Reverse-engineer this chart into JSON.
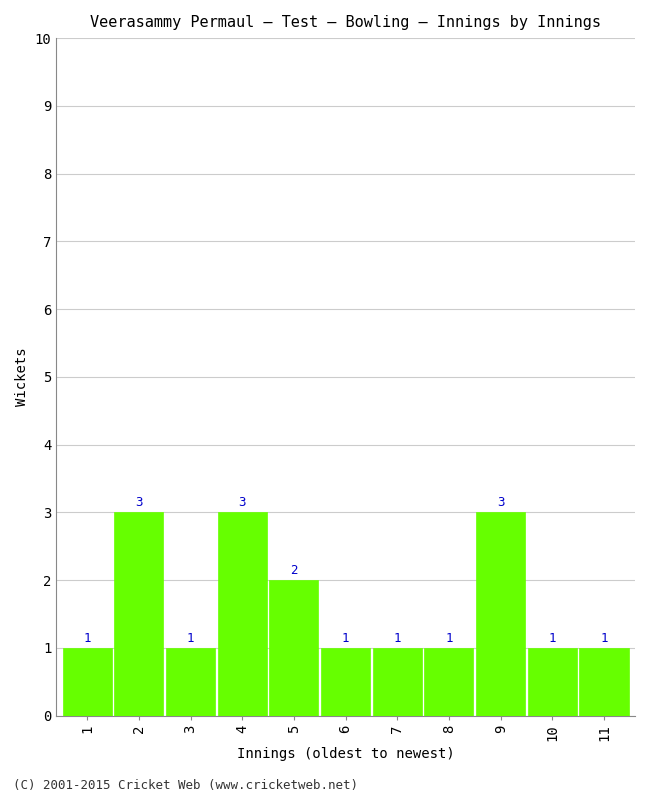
{
  "title": "Veerasammy Permaul – Test – Bowling – Innings by Innings",
  "xlabel": "Innings (oldest to newest)",
  "ylabel": "Wickets",
  "innings": [
    1,
    2,
    3,
    4,
    5,
    6,
    7,
    8,
    9,
    10,
    11
  ],
  "wickets": [
    1,
    3,
    1,
    3,
    2,
    1,
    1,
    1,
    3,
    1,
    1
  ],
  "bar_color": "#66ff00",
  "bar_edge_color": "#66ff00",
  "label_color": "#0000cc",
  "ylim": [
    0,
    10
  ],
  "yticks": [
    0,
    1,
    2,
    3,
    4,
    5,
    6,
    7,
    8,
    9,
    10
  ],
  "background_color": "#ffffff",
  "plot_bg_color": "#ffffff",
  "grid_color": "#cccccc",
  "title_fontsize": 11,
  "axis_label_fontsize": 10,
  "tick_fontsize": 10,
  "bar_label_fontsize": 9,
  "footer_text": "(C) 2001-2015 Cricket Web (www.cricketweb.net)",
  "footer_fontsize": 9
}
